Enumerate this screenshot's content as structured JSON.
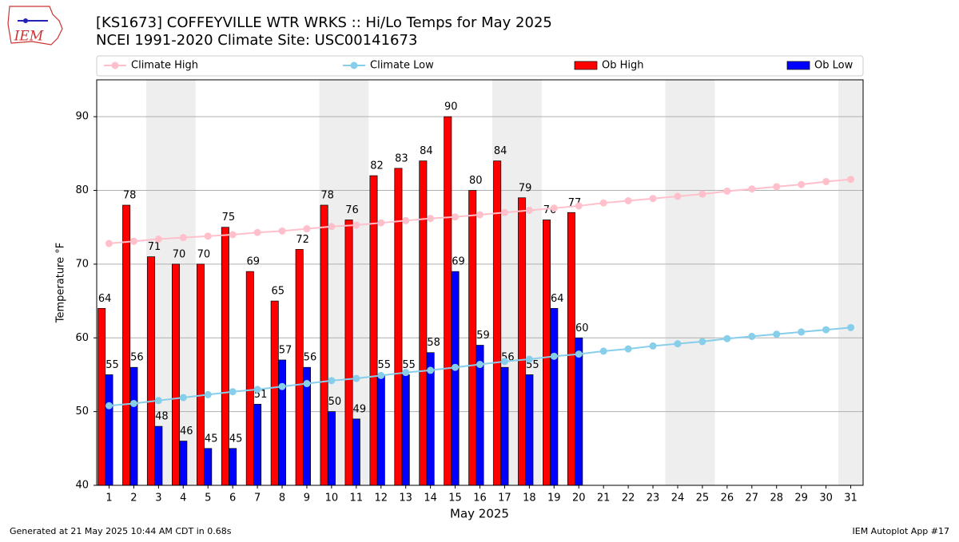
{
  "logo_text": "IEM",
  "footer_left": "Generated at 21 May 2025 10:44 AM CDT in 0.68s",
  "footer_right": "IEM Autoplot App #17",
  "chart_data": {
    "type": "bar",
    "title": "[KS1673] COFFEYVILLE WTR WRKS :: Hi/Lo Temps for May 2025",
    "subtitle": "NCEI 1991-2020 Climate Site: USC00141673",
    "xlabel": "May 2025",
    "ylabel": "Temperature °F",
    "categories": [
      "1",
      "2",
      "3",
      "4",
      "5",
      "6",
      "7",
      "8",
      "9",
      "10",
      "11",
      "12",
      "13",
      "14",
      "15",
      "16",
      "17",
      "18",
      "19",
      "20",
      "21",
      "22",
      "23",
      "24",
      "25",
      "26",
      "27",
      "28",
      "29",
      "30",
      "31"
    ],
    "weekend_days": [
      3,
      4,
      10,
      11,
      17,
      18,
      24,
      25,
      31
    ],
    "series": [
      {
        "name": "Climate High",
        "type": "line",
        "color": "#ffc0cb",
        "values": [
          72.8,
          73.1,
          73.4,
          73.6,
          73.8,
          74.0,
          74.3,
          74.5,
          74.8,
          75.1,
          75.3,
          75.6,
          75.9,
          76.2,
          76.4,
          76.7,
          77.0,
          77.3,
          77.6,
          77.9,
          78.3,
          78.6,
          78.9,
          79.2,
          79.5,
          79.9,
          80.2,
          80.5,
          80.8,
          81.2,
          81.5
        ]
      },
      {
        "name": "Climate Low",
        "type": "line",
        "color": "#87ceeb",
        "values": [
          50.8,
          51.1,
          51.5,
          51.9,
          52.3,
          52.7,
          53.0,
          53.4,
          53.8,
          54.2,
          54.5,
          54.9,
          55.3,
          55.6,
          56.0,
          56.4,
          56.8,
          57.1,
          57.5,
          57.8,
          58.2,
          58.5,
          58.9,
          59.2,
          59.5,
          59.9,
          60.2,
          60.5,
          60.8,
          61.1,
          61.4
        ]
      },
      {
        "name": "Ob High",
        "type": "bar",
        "color": "#ff0000",
        "values": [
          64,
          78,
          71,
          70,
          70,
          75,
          69,
          65,
          72,
          78,
          76,
          82,
          83,
          84,
          90,
          80,
          84,
          79,
          76,
          77,
          null,
          null,
          null,
          null,
          null,
          null,
          null,
          null,
          null,
          null,
          null
        ]
      },
      {
        "name": "Ob Low",
        "type": "bar",
        "color": "#0000ff",
        "values": [
          55,
          56,
          48,
          46,
          45,
          45,
          51,
          57,
          56,
          50,
          49,
          55,
          55,
          58,
          69,
          59,
          56,
          55,
          64,
          60,
          null,
          null,
          null,
          null,
          null,
          null,
          null,
          null,
          null,
          null,
          null
        ]
      }
    ],
    "ylim": [
      40,
      95
    ],
    "yticks": [
      40,
      50,
      60,
      70,
      80,
      90
    ],
    "grid": true,
    "legend": "top"
  }
}
